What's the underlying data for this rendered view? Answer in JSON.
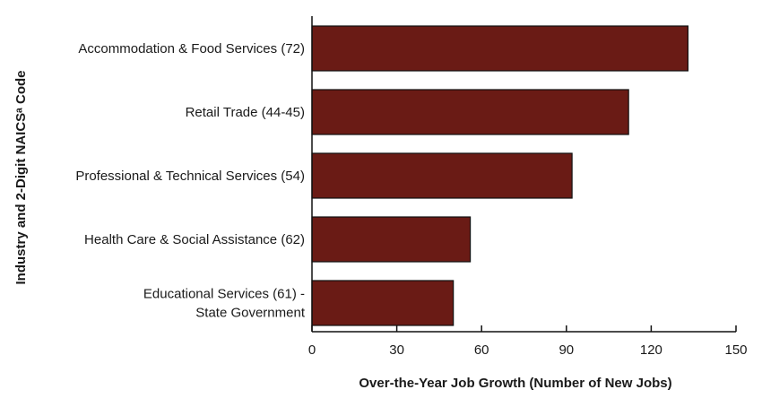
{
  "chart_data": {
    "type": "bar",
    "orientation": "horizontal",
    "xlabel": "Over-the-Year Job Growth (Number of New Jobs)",
    "ylabel": "Industry and 2-Digit NAICSᵃ Code",
    "xlim": [
      0,
      150
    ],
    "xticks": [
      "0",
      "30",
      "60",
      "90",
      "120",
      "150"
    ],
    "categories": [
      [
        "Accommodation & Food Services (72)"
      ],
      [
        "Retail Trade (44-45)"
      ],
      [
        "Professional & Technical Services (54)"
      ],
      [
        "Health Care & Social Assistance (62)"
      ],
      [
        "Educational Services (61) -",
        "State Government"
      ]
    ],
    "values": [
      133,
      112,
      92,
      56,
      50
    ],
    "grid": false,
    "colors": {
      "bar": "#6a1b15",
      "bar_stroke": "#111111",
      "axis": "#111111"
    }
  }
}
